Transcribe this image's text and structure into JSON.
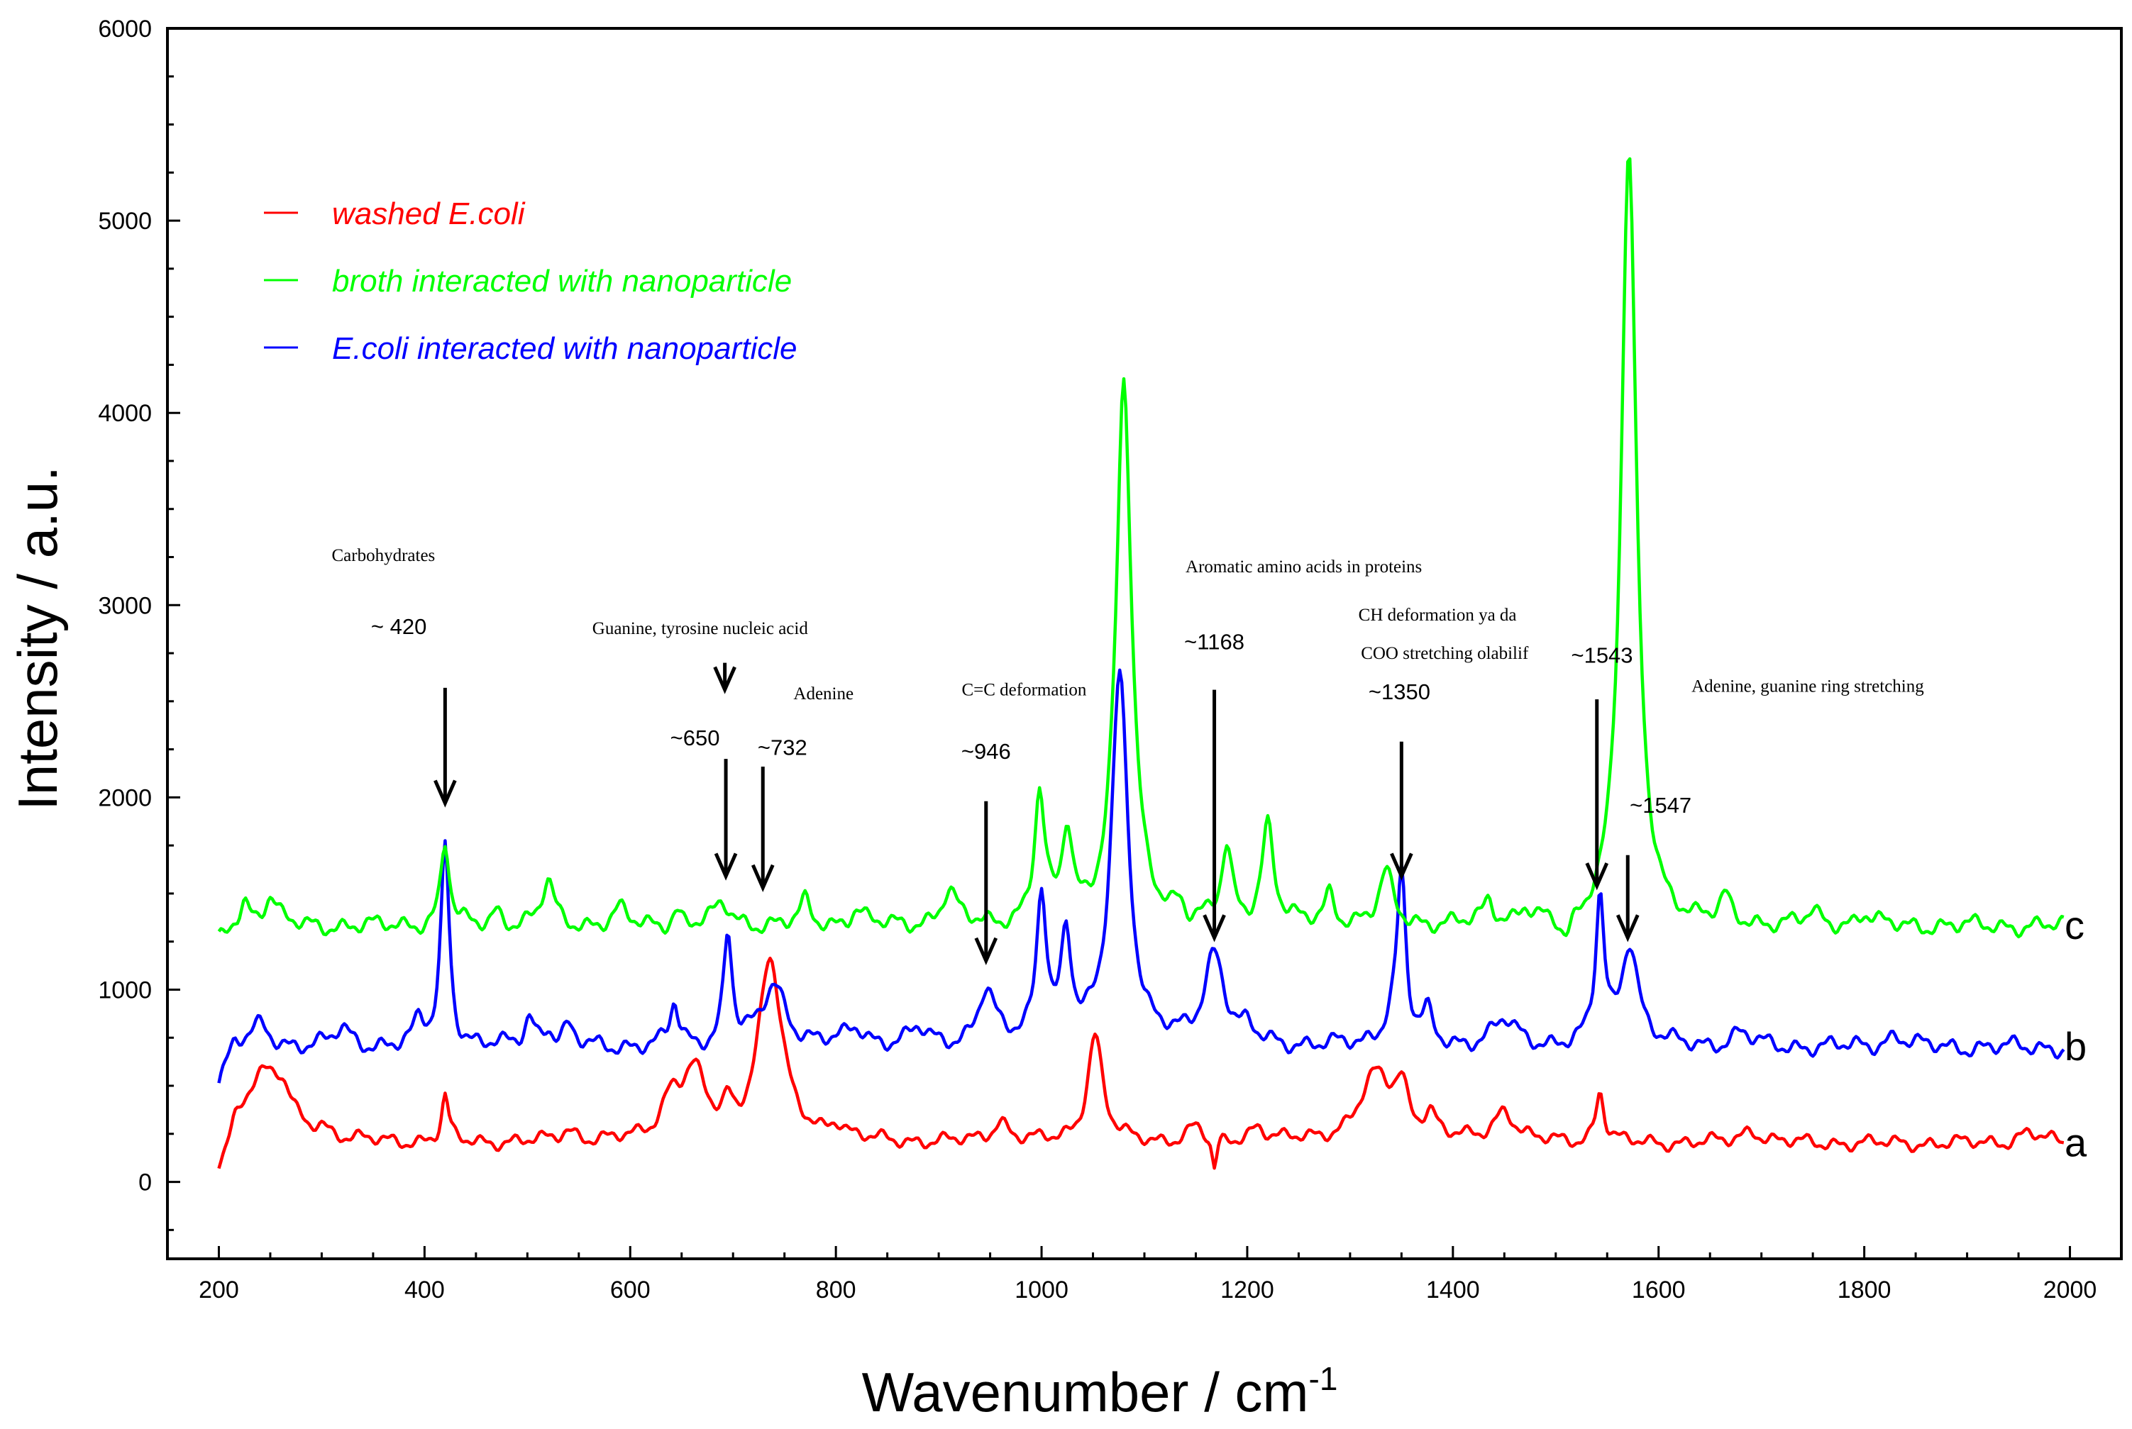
{
  "chart_data": {
    "type": "line",
    "xlabel": "Wavenumber / cm",
    "xlabel_sup": "-1",
    "ylabel": "Intensity / a.u.",
    "xlim": [
      150,
      2050
    ],
    "ylim": [
      -400,
      6000
    ],
    "xticks": [
      200,
      400,
      600,
      800,
      1000,
      1200,
      1400,
      1600,
      1800,
      2000
    ],
    "yticks": [
      0,
      1000,
      2000,
      3000,
      4000,
      5000,
      6000
    ],
    "grid": false,
    "legend_position": "top-left",
    "series": [
      {
        "name": "washed E.coli",
        "tag": "a",
        "color": "#ff0000",
        "baseline": 200,
        "noise_amp": 45,
        "peaks": [
          [
            240,
            340,
            20
          ],
          [
            262,
            180,
            12
          ],
          [
            300,
            60,
            10
          ],
          [
            420,
            230,
            4
          ],
          [
            540,
            60,
            10
          ],
          [
            640,
            200,
            12
          ],
          [
            662,
            330,
            14
          ],
          [
            695,
            120,
            5
          ],
          [
            736,
            950,
            14
          ],
          [
            800,
            80,
            10
          ],
          [
            960,
            110,
            10
          ],
          [
            1052,
            560,
            9
          ],
          [
            1150,
            80,
            10
          ],
          [
            1210,
            80,
            10
          ],
          [
            1325,
            340,
            20
          ],
          [
            1350,
            220,
            8
          ],
          [
            1378,
            120,
            8
          ],
          [
            1450,
            170,
            12
          ],
          [
            1543,
            270,
            5
          ],
          [
            1690,
            70,
            12
          ],
          [
            1960,
            60,
            12
          ]
        ],
        "dips": [
          [
            1168,
            180,
            3
          ]
        ]
      },
      {
        "name": "E.coli interacted with nanoparticle",
        "tag": "b",
        "color": "#0000ff",
        "baseline": 700,
        "noise_amp": 55,
        "peaks": [
          [
            240,
            110,
            12
          ],
          [
            320,
            90,
            10
          ],
          [
            395,
            120,
            6
          ],
          [
            420,
            1050,
            5
          ],
          [
            502,
            150,
            6
          ],
          [
            520,
            90,
            6
          ],
          [
            540,
            90,
            6
          ],
          [
            643,
            220,
            5
          ],
          [
            695,
            580,
            5
          ],
          [
            740,
            320,
            14
          ],
          [
            820,
            90,
            12
          ],
          [
            880,
            80,
            10
          ],
          [
            946,
            280,
            10
          ],
          [
            1000,
            790,
            6
          ],
          [
            1024,
            530,
            6
          ],
          [
            1076,
            1930,
            10
          ],
          [
            1168,
            480,
            12
          ],
          [
            1200,
            60,
            8
          ],
          [
            1340,
            120,
            10
          ],
          [
            1350,
            860,
            5
          ],
          [
            1375,
            150,
            6
          ],
          [
            1450,
            130,
            14
          ],
          [
            1543,
            760,
            5
          ],
          [
            1572,
            540,
            10
          ],
          [
            1680,
            70,
            12
          ],
          [
            1830,
            60,
            12
          ]
        ],
        "dips": []
      },
      {
        "name": "broth interacted with nanoparticle",
        "tag": "c",
        "color": "#00ff00",
        "baseline": 1330,
        "noise_amp": 55,
        "peaks": [
          [
            225,
            120,
            6
          ],
          [
            250,
            150,
            8
          ],
          [
            420,
            430,
            5
          ],
          [
            470,
            80,
            6
          ],
          [
            520,
            230,
            7
          ],
          [
            590,
            80,
            8
          ],
          [
            645,
            80,
            5
          ],
          [
            690,
            110,
            10
          ],
          [
            770,
            120,
            6
          ],
          [
            820,
            80,
            8
          ],
          [
            910,
            170,
            9
          ],
          [
            998,
            660,
            6
          ],
          [
            1025,
            460,
            6
          ],
          [
            1080,
            2830,
            9
          ],
          [
            1135,
            120,
            8
          ],
          [
            1180,
            380,
            6
          ],
          [
            1220,
            520,
            7
          ],
          [
            1280,
            160,
            6
          ],
          [
            1335,
            260,
            8
          ],
          [
            1435,
            120,
            6
          ],
          [
            1470,
            80,
            8
          ],
          [
            1571,
            4020,
            9
          ],
          [
            1665,
            120,
            6
          ],
          [
            1750,
            60,
            8
          ],
          [
            1800,
            60,
            8
          ]
        ],
        "dips": [
          [
            1140,
            60,
            8
          ],
          [
            1510,
            140,
            8
          ]
        ]
      }
    ],
    "annotations": [
      {
        "text": "Carbohydrates",
        "tx": 360,
        "ty": 3230,
        "kind": "label"
      },
      {
        "text": "~ 420",
        "tx": 375,
        "ty": 2850,
        "kind": "number"
      },
      {
        "text": "Guanine, tyrosine nucleic acid",
        "tx": 668,
        "ty": 2850,
        "kind": "label"
      },
      {
        "text": "~650",
        "tx": 663,
        "ty": 2270,
        "kind": "number"
      },
      {
        "text": "Adenine",
        "tx": 788,
        "ty": 2510,
        "kind": "label"
      },
      {
        "text": "~732",
        "tx": 748,
        "ty": 2220,
        "kind": "number"
      },
      {
        "text": "C=C deformation",
        "tx": 983,
        "ty": 2530,
        "kind": "label"
      },
      {
        "text": "~946",
        "tx": 946,
        "ty": 2200,
        "kind": "number"
      },
      {
        "text": "Aromatic amino acids in proteins",
        "tx": 1255,
        "ty": 3170,
        "kind": "label"
      },
      {
        "text": "~1168",
        "tx": 1168,
        "ty": 2770,
        "kind": "number"
      },
      {
        "text": "CH deformation ya da",
        "tx": 1385,
        "ty": 2920,
        "kind": "label"
      },
      {
        "text": "COO stretching olabilif",
        "tx": 1392,
        "ty": 2720,
        "kind": "label"
      },
      {
        "text": "~1350",
        "tx": 1348,
        "ty": 2510,
        "kind": "number"
      },
      {
        "text": "~1543",
        "tx": 1545,
        "ty": 2700,
        "kind": "number"
      },
      {
        "text": "Adenine, guanine ring stretching",
        "tx": 1745,
        "ty": 2550,
        "kind": "label"
      },
      {
        "text": "~1547",
        "tx": 1602,
        "ty": 1920,
        "kind": "number"
      }
    ],
    "arrows": [
      {
        "x": 420,
        "y_from": 2570,
        "y_to": 1970
      },
      {
        "x": 692,
        "y_from": 2700,
        "y_to": 2560
      },
      {
        "x": 693,
        "y_from": 2200,
        "y_to": 1590
      },
      {
        "x": 729,
        "y_from": 2160,
        "y_to": 1530
      },
      {
        "x": 946,
        "y_from": 1980,
        "y_to": 1150
      },
      {
        "x": 1168,
        "y_from": 2560,
        "y_to": 1270
      },
      {
        "x": 1350,
        "y_from": 2290,
        "y_to": 1590
      },
      {
        "x": 1540,
        "y_from": 2510,
        "y_to": 1540
      },
      {
        "x": 1570,
        "y_from": 1700,
        "y_to": 1270
      }
    ]
  }
}
